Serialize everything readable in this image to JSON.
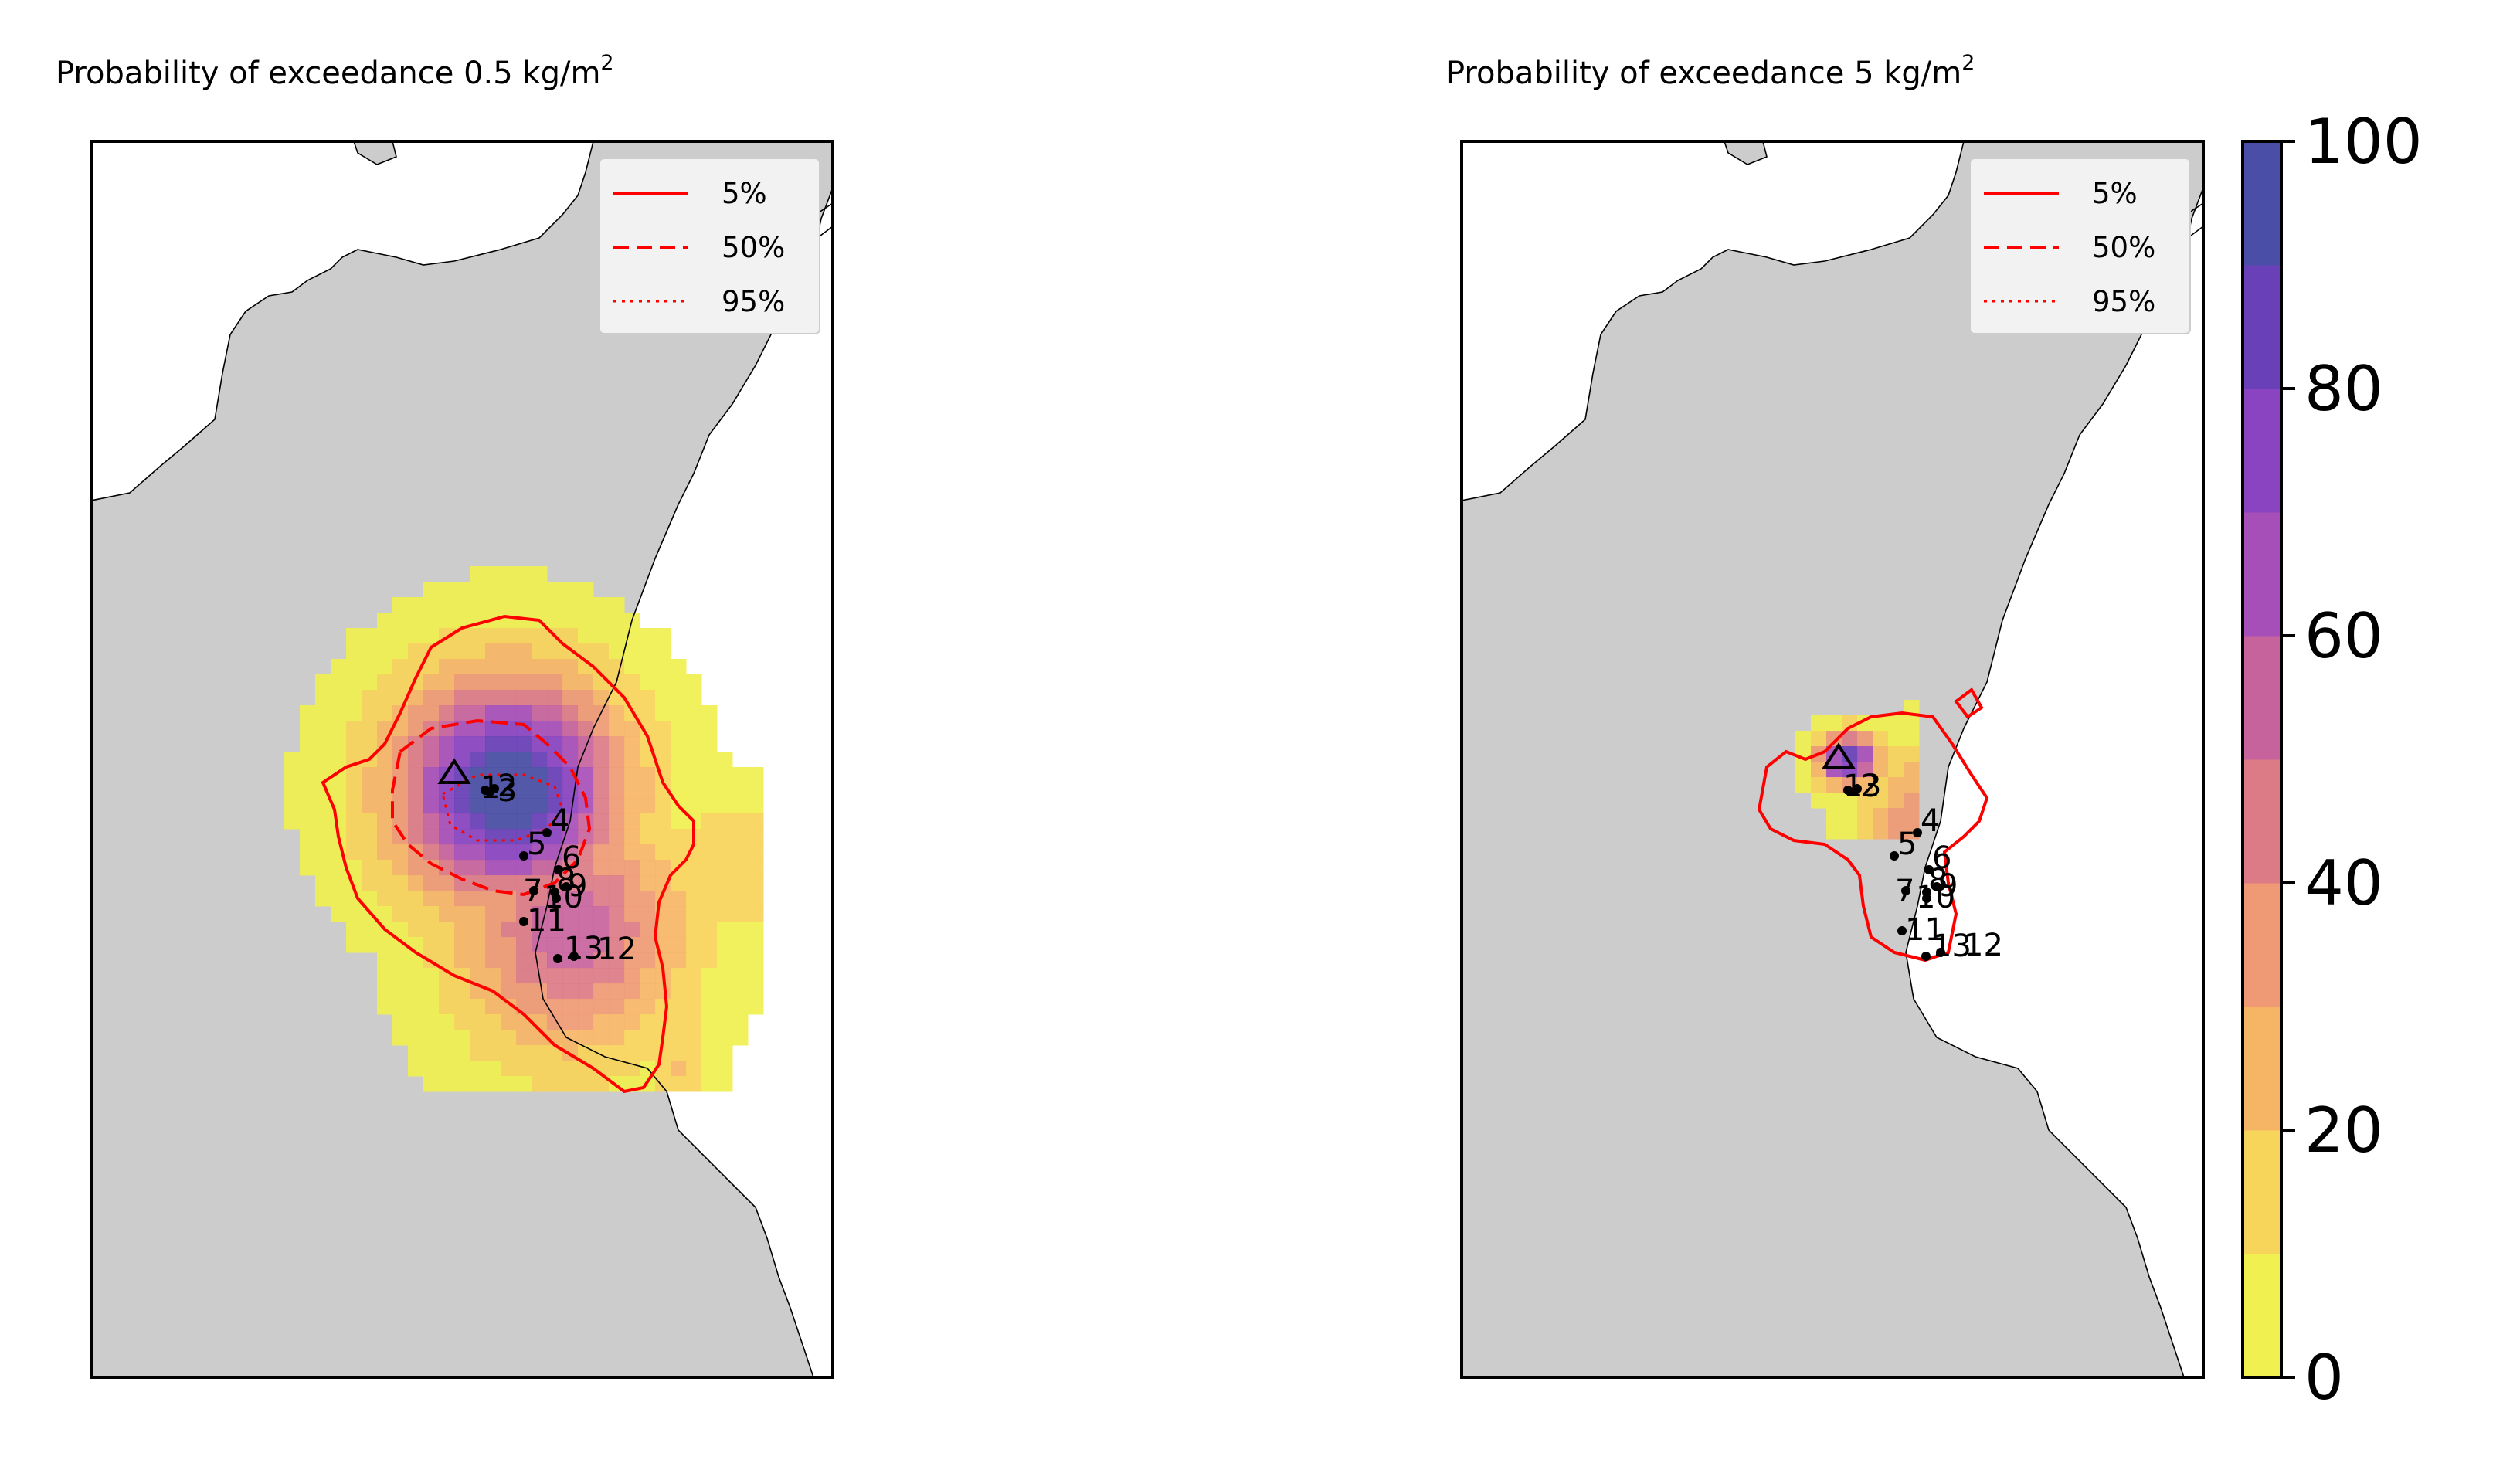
{
  "panels": [
    {
      "title_text": "Probability of exceedance 0.5 kg/m",
      "title_sup": "2",
      "legend": [
        {
          "label": "5%",
          "style": "solid"
        },
        {
          "label": "50%",
          "style": "dashed"
        },
        {
          "label": "95%",
          "style": "dotted"
        }
      ],
      "site_labels": [
        "1",
        "2",
        "3",
        "4",
        "5",
        "6",
        "7",
        "8",
        "9",
        "10",
        "11",
        "12",
        "13"
      ]
    },
    {
      "title_text": "Probability of exceedance 5 kg/m",
      "title_sup": "2",
      "legend": [
        {
          "label": "5%",
          "style": "solid"
        },
        {
          "label": "50%",
          "style": "dashed"
        },
        {
          "label": "95%",
          "style": "dotted"
        }
      ],
      "site_labels": [
        "1",
        "2",
        "3",
        "4",
        "5",
        "6",
        "7",
        "8",
        "9",
        "10",
        "11",
        "12",
        "13"
      ]
    }
  ],
  "colorbar": {
    "ticks": [
      "0",
      "20",
      "40",
      "60",
      "80",
      "100"
    ],
    "colors": [
      "#f0f050",
      "#f7d45a",
      "#f6b565",
      "#ef9a74",
      "#dc7b86",
      "#c7639c",
      "#a74fb8",
      "#8a44c2",
      "#6a40b8",
      "#4a4ea6"
    ]
  },
  "colors": {
    "land": "#cccccc",
    "contour": "#ff0000",
    "coast": "#000000"
  },
  "icons": [
    "vent-triangle-icon"
  ]
}
